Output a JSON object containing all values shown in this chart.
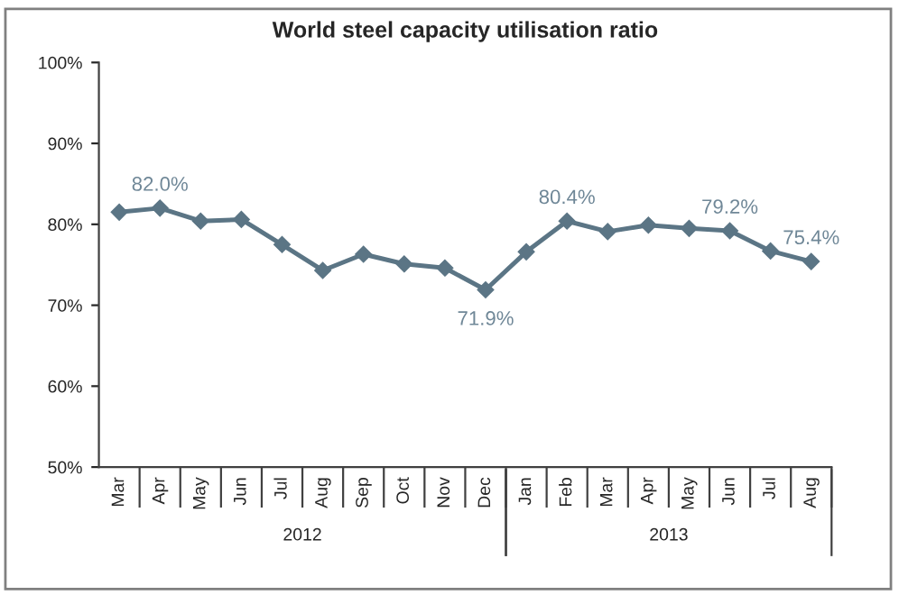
{
  "chart_data": {
    "type": "line",
    "title": "World steel capacity utilisation ratio",
    "categories": [
      "Mar",
      "Apr",
      "May",
      "Jun",
      "Jul",
      "Aug",
      "Sep",
      "Oct",
      "Nov",
      "Dec",
      "Jan",
      "Feb",
      "Mar",
      "Apr",
      "May",
      "Jun",
      "Jul",
      "Aug"
    ],
    "annotations": [
      "2012",
      "2013"
    ],
    "series": [
      {
        "color": "#5b7585",
        "values": [
          81.5,
          82.0,
          80.4,
          80.6,
          77.5,
          74.3,
          76.3,
          75.1,
          74.6,
          71.9,
          76.6,
          80.4,
          79.1,
          79.9,
          79.5,
          79.2,
          76.7,
          75.4
        ],
        "value_labels": [
          null,
          "82.0%",
          null,
          null,
          null,
          null,
          null,
          null,
          null,
          "71.9%",
          null,
          "80.4%",
          null,
          null,
          null,
          "79.2%",
          null,
          "75.4%"
        ]
      }
    ],
    "ylim": [
      50,
      100
    ],
    "yticks": [
      {
        "value": 50,
        "label": "50%"
      },
      {
        "value": 60,
        "label": "60%"
      },
      {
        "value": 70,
        "label": "70%"
      },
      {
        "value": 80,
        "label": "80%"
      },
      {
        "value": 90,
        "label": "90%"
      },
      {
        "value": 100,
        "label": "100%"
      }
    ],
    "marker": "diamond",
    "line_style": "solid",
    "grid": false,
    "legend": false
  }
}
